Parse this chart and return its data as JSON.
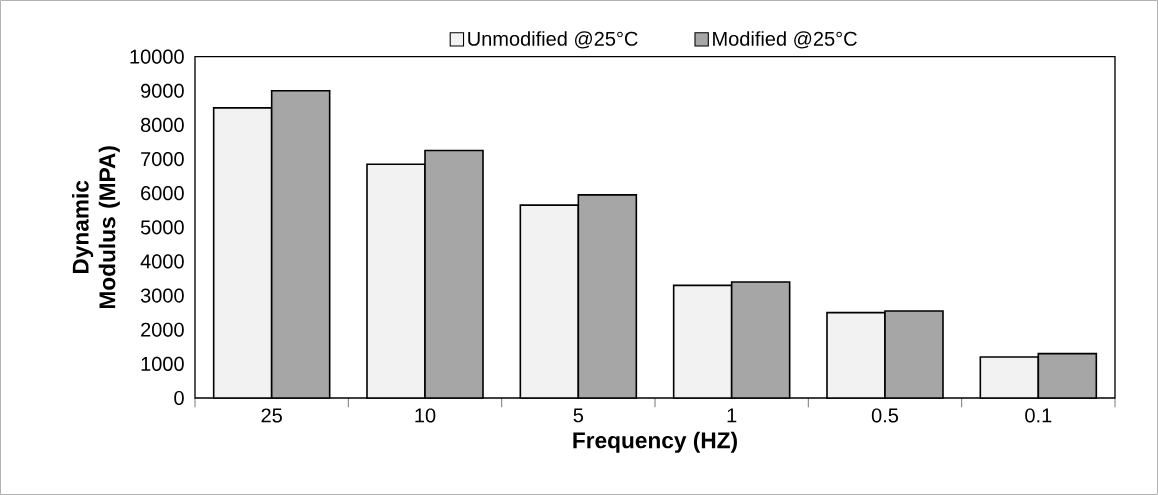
{
  "chart_data": {
    "type": "bar",
    "xlabel": "Frequency (HZ)",
    "ylabel": "Dynamic Modulus (MPA)",
    "categories": [
      "25",
      "10",
      "5",
      "1",
      "0.5",
      "0.1"
    ],
    "series": [
      {
        "name": "Unmodified @25°C",
        "color": "#f2f2f2",
        "values": [
          8500,
          6850,
          5650,
          3300,
          2500,
          1200
        ]
      },
      {
        "name": "Modified @25°C",
        "color": "#a6a6a6",
        "values": [
          9000,
          7250,
          5950,
          3400,
          2550,
          1300
        ]
      }
    ],
    "ylim": [
      0,
      10000
    ],
    "yticks": [
      0,
      1000,
      2000,
      3000,
      4000,
      5000,
      6000,
      7000,
      8000,
      9000,
      10000
    ],
    "grid": false,
    "legend": "top"
  }
}
